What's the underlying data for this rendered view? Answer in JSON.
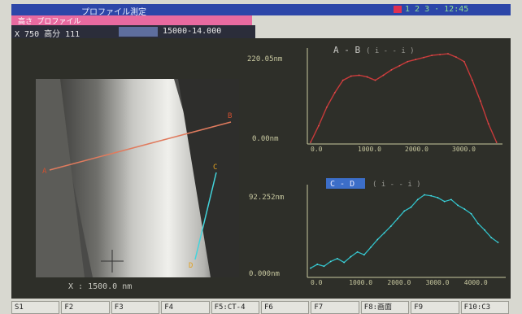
{
  "window": {
    "title": "プロファイル測定",
    "status": "1 2 3 ·  12:45",
    "mode_label": "高さ プロファイル",
    "info_left": "X 750 高分 111",
    "info_range": "15000-14.000",
    "image_scale_label": "X : 1500.0 nm",
    "colors": {
      "titlebar": "#2c46a8",
      "mode": "#e86aa0",
      "panel": "#2e2f29",
      "profile_ab": "#c83a3a",
      "profile_cd": "#30c0c8",
      "axis": "#c8c8a0"
    }
  },
  "markers": {
    "a": "A",
    "b": "B",
    "c": "C",
    "d": "D"
  },
  "charts": [
    {
      "title": "A - B",
      "subtitle": "( i - - i )",
      "chart_data": {
        "type": "line",
        "title": "A - B",
        "y_top_label": "220.05nm",
        "y_bottom_label": "0.00nm",
        "x_ticks": [
          "0.0",
          "1000.0",
          "2000.0",
          "3000.0"
        ],
        "ylim": [
          0,
          220.05
        ],
        "xlim": [
          0,
          3500
        ],
        "x": [
          0,
          150,
          300,
          450,
          600,
          750,
          900,
          1050,
          1200,
          1350,
          1500,
          1650,
          1800,
          1950,
          2100,
          2250,
          2400,
          2550,
          2700,
          2850,
          3000,
          3150,
          3300,
          3450
        ],
        "values": [
          0,
          40,
          85,
          120,
          150,
          160,
          162,
          158,
          150,
          162,
          175,
          185,
          195,
          200,
          205,
          210,
          212,
          214,
          206,
          195,
          150,
          100,
          45,
          0
        ]
      }
    },
    {
      "title": "C - D",
      "subtitle": "( i - - i )",
      "chart_data": {
        "type": "line",
        "title": "C - D",
        "y_top_label": "92.252nm",
        "y_bottom_label": "0.000nm",
        "x_ticks": [
          "0.0",
          "1000.0",
          "2000.0",
          "3000.0",
          "4000.0"
        ],
        "ylim": [
          0,
          92.252
        ],
        "xlim": [
          0,
          4300
        ],
        "x": [
          0,
          150,
          300,
          450,
          600,
          750,
          900,
          1050,
          1200,
          1350,
          1500,
          1650,
          1800,
          1950,
          2100,
          2250,
          2400,
          2550,
          2700,
          2850,
          3000,
          3150,
          3300,
          3450,
          3600,
          3750,
          3900,
          4050,
          4200
        ],
        "values": [
          8,
          12,
          10,
          15,
          18,
          14,
          20,
          25,
          22,
          30,
          38,
          45,
          52,
          60,
          68,
          72,
          80,
          85,
          84,
          82,
          78,
          80,
          74,
          70,
          65,
          55,
          48,
          40,
          35
        ]
      }
    }
  ],
  "softkeys": [
    "S1",
    "F2",
    "F3",
    "F4",
    "F5:CT-4",
    "F6",
    "F7",
    "F8:画面",
    "F9",
    "F10:C3"
  ]
}
